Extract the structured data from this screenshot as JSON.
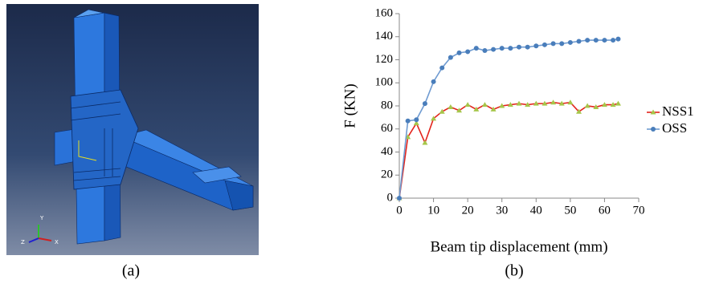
{
  "figure": {
    "captions": [
      "(a)",
      "(b)"
    ],
    "triad_labels": [
      "Y",
      "X",
      "Z"
    ]
  },
  "chart_data": {
    "type": "line",
    "x_label": "Beam tip displacement (mm)",
    "y_label": "F (KN)",
    "x": [
      0,
      2.5,
      5,
      7.5,
      10,
      12.5,
      15,
      17.5,
      20,
      22.5,
      25,
      27.5,
      30,
      32.5,
      35,
      37.5,
      40,
      42.5,
      45,
      47.5,
      50,
      52.5,
      55,
      57.5,
      60,
      62.5,
      64
    ],
    "series": [
      {
        "name": "NSS1",
        "color": "#e3231b",
        "marker": "triangle",
        "marker_color": "#a6c64a",
        "values": [
          0,
          53,
          65,
          48,
          69,
          75,
          79,
          76,
          81,
          77,
          81,
          77,
          80,
          81,
          82,
          81,
          82,
          82,
          83,
          82,
          83,
          75,
          80,
          79,
          81,
          81,
          82
        ]
      },
      {
        "name": "OSS",
        "color": "#6f9bd1",
        "marker": "circle",
        "marker_color": "#4a7ebb",
        "values": [
          0,
          67,
          68,
          82,
          101,
          113,
          122,
          126,
          127,
          130,
          128,
          129,
          130,
          130,
          131,
          131,
          132,
          133,
          134,
          134,
          135,
          136,
          137,
          137,
          137,
          137,
          138
        ]
      }
    ],
    "xlim": [
      0,
      70
    ],
    "xticks": [
      0,
      10,
      20,
      30,
      40,
      50,
      60,
      70
    ],
    "ylim": [
      0,
      160
    ],
    "yticks": [
      0,
      20,
      40,
      60,
      80,
      100,
      120,
      140,
      160
    ],
    "grid": false,
    "legend": "right"
  }
}
